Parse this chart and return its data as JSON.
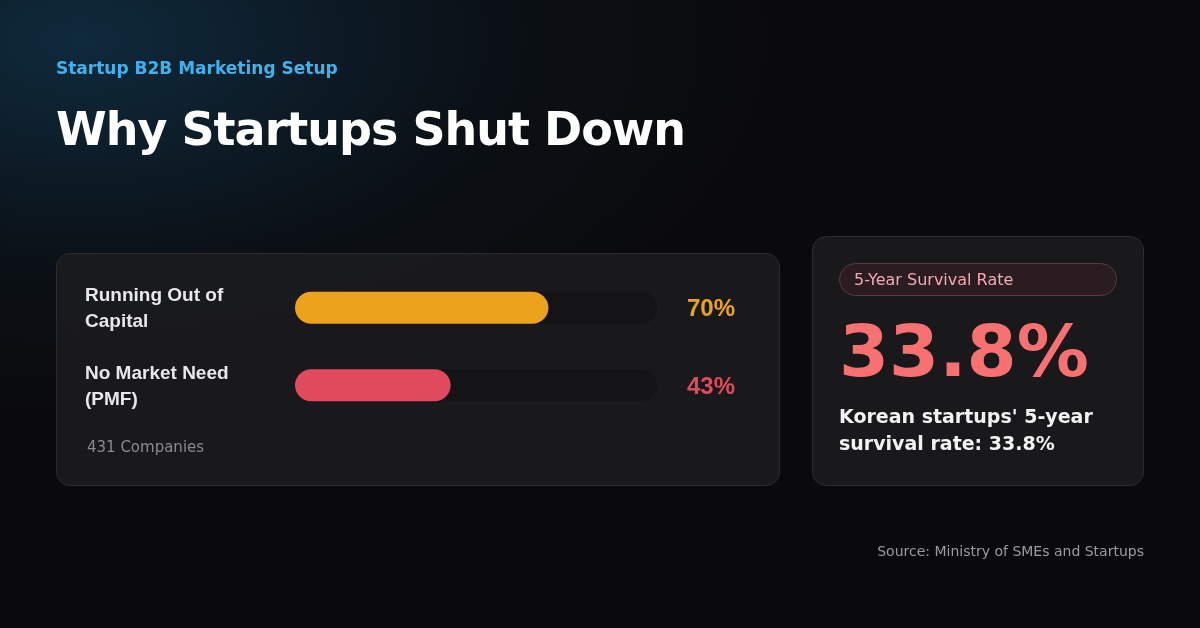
{
  "chart_data": [
    {
      "type": "bar",
      "orientation": "horizontal",
      "subtitle": "Startup B2B Marketing Setup",
      "title": "Why Startups Shut Down",
      "categories": [
        "Running Out of Capital",
        "No Market Need (PMF)"
      ],
      "values": [
        70,
        43
      ],
      "colors": [
        "#eda21c",
        "#e04a5c"
      ],
      "value_labels": [
        "70%",
        "43%"
      ],
      "xlim": [
        0,
        100
      ],
      "annotations": [
        "431 Companies",
        "Source: Ministry of SMEs and Startups"
      ]
    },
    {
      "type": "other",
      "title": "5-Year Survival Rate",
      "annotations": [
        "33.8%",
        "Korean startups' 5-year survival rate: 33.8%"
      ]
    }
  ]
}
